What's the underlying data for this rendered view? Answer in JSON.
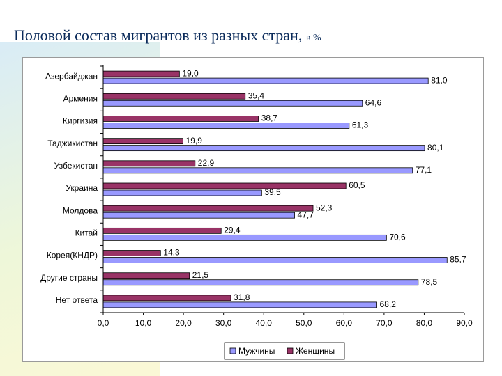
{
  "title": {
    "main": "Половой состав мигрантов из разных стран,",
    "suffix": "в %"
  },
  "chart_data": {
    "type": "bar",
    "orientation": "horizontal",
    "categories": [
      "Азербайджан",
      "Армения",
      "Киргизия",
      "Таджикистан",
      "Узбекистан",
      "Украина",
      "Молдова",
      "Китай",
      "Корея(КНДР)",
      "Другие страны",
      "Нет ответа"
    ],
    "series": [
      {
        "name": "Женщины",
        "color": "#993366",
        "values": [
          19.0,
          35.4,
          38.7,
          19.9,
          22.9,
          60.5,
          52.3,
          29.4,
          14.3,
          21.5,
          31.8
        ]
      },
      {
        "name": "Мужчины",
        "color": "#9999ff",
        "values": [
          81.0,
          64.6,
          61.3,
          80.1,
          77.1,
          39.5,
          47.7,
          70.6,
          85.7,
          78.5,
          68.2
        ]
      }
    ],
    "value_labels": [
      [
        "19,0",
        "35,4",
        "38,7",
        "19,9",
        "22,9",
        "60,5",
        "52,3",
        "29,4",
        "14,3",
        "21,5",
        "31,8"
      ],
      [
        "81,0",
        "64,6",
        "61,3",
        "80,1",
        "77,1",
        "39,5",
        "47,7",
        "70,6",
        "85,7",
        "78,5",
        "68,2"
      ]
    ],
    "xlim": [
      0,
      90
    ],
    "xticks": [
      0,
      10,
      20,
      30,
      40,
      50,
      60,
      70,
      80,
      90
    ],
    "xtick_labels": [
      "0,0",
      "10,0",
      "20,0",
      "30,0",
      "40,0",
      "50,0",
      "60,0",
      "70,0",
      "80,0",
      "90,0"
    ],
    "legend": {
      "placement": "bottom",
      "entries": [
        "Мужчины",
        "Женщины"
      ]
    },
    "grid": false
  }
}
